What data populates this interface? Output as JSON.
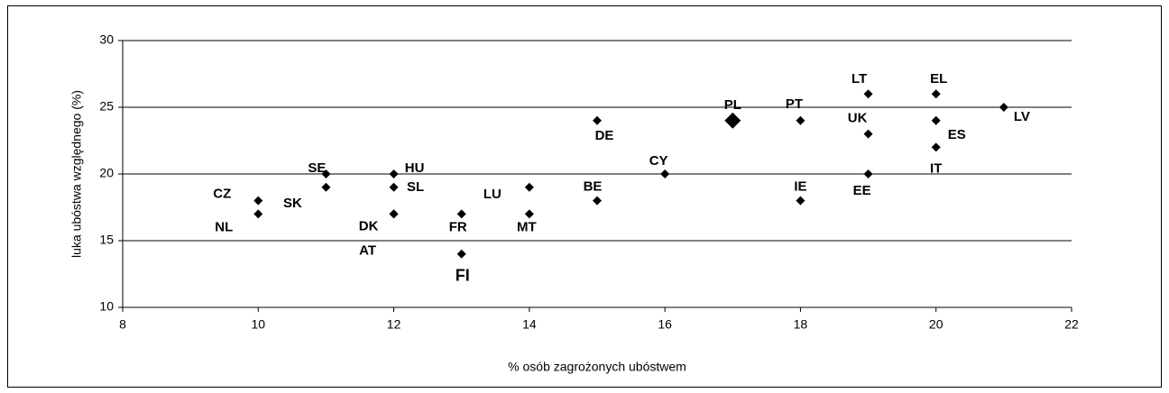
{
  "chart_data": {
    "type": "scatter",
    "xlabel": "% osób zagrożonych ubóstwem",
    "ylabel": "luka ubóstwa względnego (%)",
    "xlim": [
      8,
      22
    ],
    "ylim": [
      10,
      30
    ],
    "xticks": [
      8,
      10,
      12,
      14,
      16,
      18,
      20,
      22
    ],
    "yticks": [
      10,
      15,
      20,
      25,
      30
    ],
    "grid": true,
    "color": "#000000",
    "labels": [
      "CZ",
      "NL",
      "SE",
      "SK",
      "HU",
      "SL",
      "DK",
      "AT",
      "FR",
      "FI",
      "LU",
      "MT",
      "BE",
      "DE",
      "CY",
      "PL",
      "PT",
      "IE",
      "LT",
      "UK",
      "EE",
      "EL",
      "ES",
      "IT",
      "LV"
    ],
    "x": [
      10,
      10,
      11,
      11,
      12,
      12,
      12,
      12,
      13,
      13,
      14,
      14,
      15,
      15,
      16,
      17,
      18,
      18,
      19,
      19,
      19,
      20,
      20,
      20,
      21
    ],
    "y": [
      18,
      17,
      20,
      19,
      20,
      19,
      17,
      17,
      17,
      14,
      19,
      17,
      18,
      24,
      20,
      24,
      24,
      18,
      26,
      23,
      20,
      26,
      24,
      22,
      25
    ]
  }
}
